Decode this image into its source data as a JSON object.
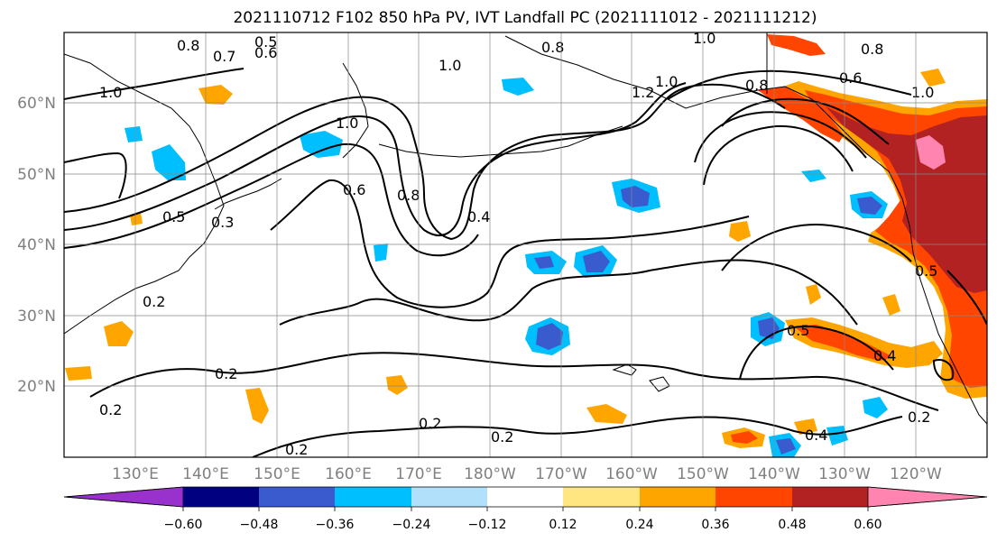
{
  "title": "2021110712 F102 850 hPa PV, IVT Landfall PC (2021111012 - 2021111212)",
  "map": {
    "lon_labels": [
      "130°E",
      "140°E",
      "150°E",
      "160°E",
      "170°E",
      "180°W",
      "170°W",
      "160°W",
      "150°W",
      "140°W",
      "130°W",
      "120°W"
    ],
    "lat_labels": [
      "60°N",
      "50°N",
      "40°N",
      "30°N",
      "20°N"
    ],
    "contour_labels": [
      "0.8",
      "0.7",
      "0.5",
      "0.6",
      "0.8",
      "1.0",
      "0.8",
      "1.0",
      "1.0",
      "1.2",
      "1.0",
      "0.5",
      "0.3",
      "0.2",
      "1.0",
      "0.6",
      "0.8",
      "0.4",
      "0.2",
      "0.2",
      "0.2",
      "0.2",
      "0.2",
      "0.5",
      "0.4",
      "0.2",
      "0.8",
      "0.6",
      "1.0",
      "0.5",
      "0.4"
    ],
    "colors": {
      "neg_extreme": "#9932cc",
      "neg_strong": "#000080",
      "neg_mod": "#3a5bcd",
      "neg_light": "#00bfff",
      "neg_faint": "#b0e0fa",
      "neutral": "#ffffff",
      "pos_faint": "#ffe680",
      "pos_light": "#ffa500",
      "pos_mod": "#ff4500",
      "pos_strong": "#b22222",
      "pos_extreme": "#ff85b0"
    }
  },
  "colorbar": {
    "ticks": [
      "−0.60",
      "−0.48",
      "−0.36",
      "−0.24",
      "−0.12",
      "0.12",
      "0.24",
      "0.36",
      "0.48",
      "0.60"
    ],
    "colors": [
      "#9932cc",
      "#000080",
      "#3a5bcd",
      "#00bfff",
      "#b0e0fa",
      "#ffffff",
      "#ffe680",
      "#ffa500",
      "#ff4500",
      "#b22222",
      "#ff85b0"
    ]
  }
}
